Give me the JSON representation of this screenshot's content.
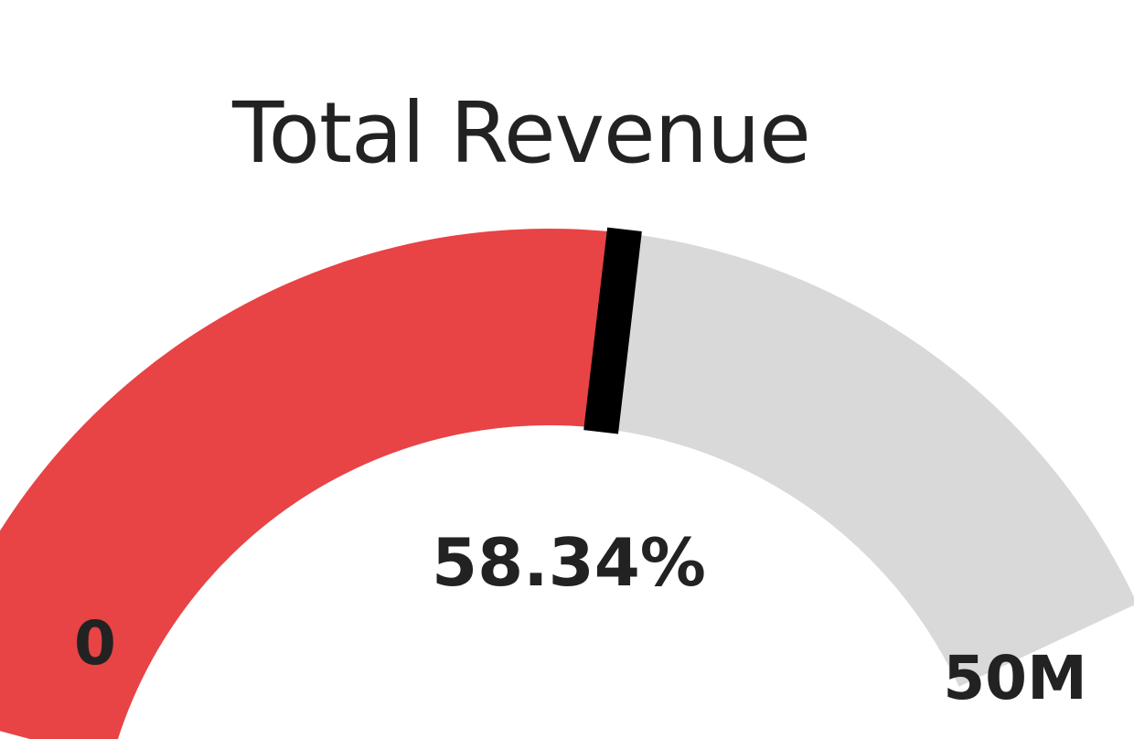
{
  "chart_data": {
    "type": "gauge",
    "title": "Total Revenue",
    "min_label": "0",
    "max_label": "50M",
    "value_label": "58.34%",
    "fraction": 0.5834,
    "colors": {
      "fill": "#E84345",
      "track": "#D9D9D9",
      "needle": "#000000"
    }
  }
}
